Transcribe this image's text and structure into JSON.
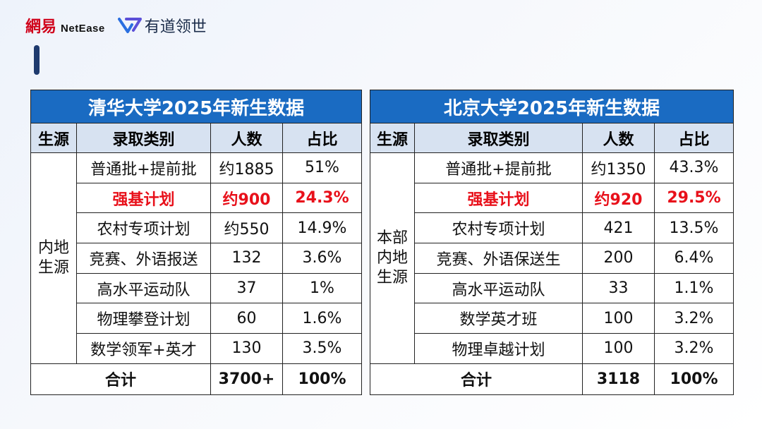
{
  "header": {
    "netease_cn": "網易",
    "netease_en": "NetEase",
    "youdao_text": "有道领世"
  },
  "tables": [
    {
      "title": "清华大学2025年新生数据",
      "headers": [
        "生源",
        "录取类别",
        "人数",
        "占比"
      ],
      "source_label": "内地\n生源",
      "rows": [
        {
          "category": "普通批+提前批",
          "count": "约1885",
          "ratio": "51%",
          "highlight": false
        },
        {
          "category": "强基计划",
          "count": "约900",
          "ratio": "24.3%",
          "highlight": true
        },
        {
          "category": "农村专项计划",
          "count": "约550",
          "ratio": "14.9%",
          "highlight": false
        },
        {
          "category": "竞赛、外语报送",
          "count": "132",
          "ratio": "3.6%",
          "highlight": false
        },
        {
          "category": "高水平运动队",
          "count": "37",
          "ratio": "1%",
          "highlight": false
        },
        {
          "category": "物理攀登计划",
          "count": "60",
          "ratio": "1.6%",
          "highlight": false
        },
        {
          "category": "数学领军+英才",
          "count": "130",
          "ratio": "3.5%",
          "highlight": false
        }
      ],
      "total": {
        "label": "合计",
        "count": "3700+",
        "ratio": "100%"
      }
    },
    {
      "title": "北京大学2025年新生数据",
      "headers": [
        "生源",
        "录取类别",
        "人数",
        "占比"
      ],
      "source_label": "本部\n内地\n生源",
      "rows": [
        {
          "category": "普通批+提前批",
          "count": "约1350",
          "ratio": "43.3%",
          "highlight": false
        },
        {
          "category": "强基计划",
          "count": "约920",
          "ratio": "29.5%",
          "highlight": true
        },
        {
          "category": "农村专项计划",
          "count": "421",
          "ratio": "13.5%",
          "highlight": false
        },
        {
          "category": "竞赛、外语保送生",
          "count": "200",
          "ratio": "6.4%",
          "highlight": false
        },
        {
          "category": "高水平运动队",
          "count": "33",
          "ratio": "1.1%",
          "highlight": false
        },
        {
          "category": "数学英才班",
          "count": "100",
          "ratio": "3.2%",
          "highlight": false
        },
        {
          "category": "物理卓越计划",
          "count": "100",
          "ratio": "3.2%",
          "highlight": false
        }
      ],
      "total": {
        "label": "合计",
        "count": "3118",
        "ratio": "100%"
      }
    }
  ],
  "colors": {
    "title_bg": "#1a6bc2",
    "header_bg": "#d7e2f1",
    "highlight": "#e8101a",
    "accent_bar": "#1e3a6e"
  }
}
